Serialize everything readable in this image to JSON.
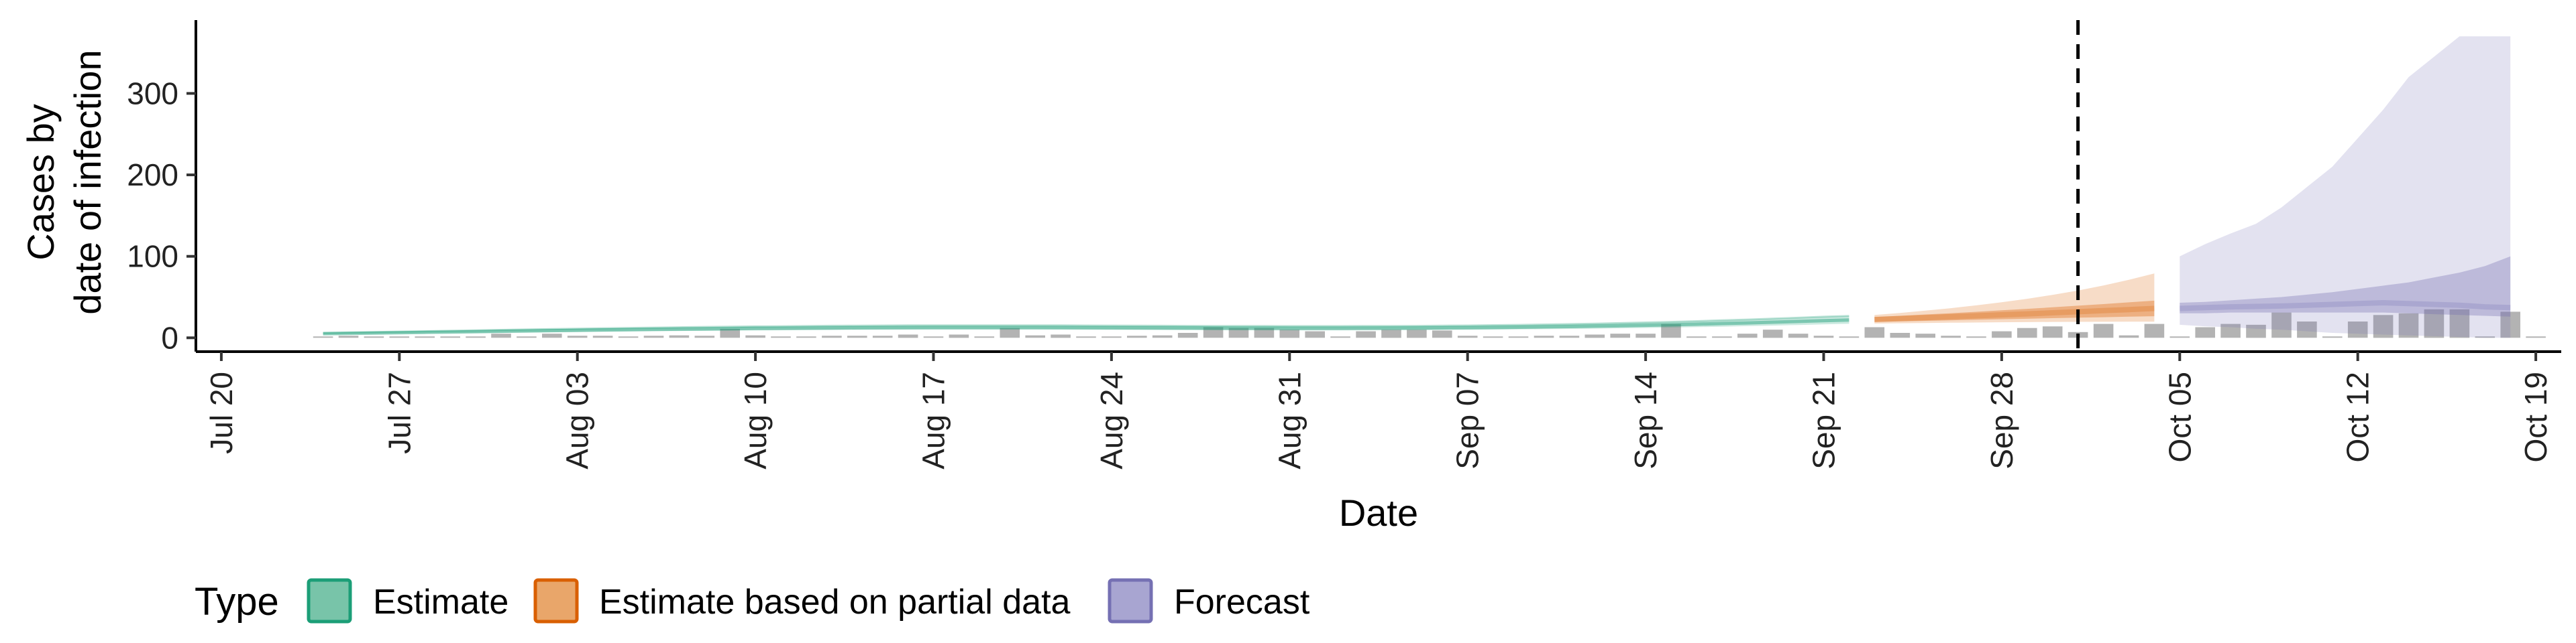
{
  "chart_data": {
    "type": "area",
    "xlabel": "Date",
    "ylabel_lines": [
      "Cases by",
      "date of infection"
    ],
    "ylim": [
      -17,
      390
    ],
    "yticks": [
      0,
      100,
      200,
      300
    ],
    "xlim_days": [
      -1,
      92
    ],
    "date_origin": "Jul 20",
    "xtick_days": [
      0,
      7,
      14,
      21,
      28,
      35,
      42,
      49,
      56,
      63,
      70,
      77,
      84,
      91
    ],
    "xtick_labels": [
      "Jul 20",
      "Jul 27",
      "Aug 03",
      "Aug 10",
      "Aug 17",
      "Aug 24",
      "Aug 31",
      "Sep 07",
      "Sep 14",
      "Sep 21",
      "Sep 28",
      "Oct 05",
      "Oct 12",
      "Oct 19"
    ],
    "vline_day": 73,
    "legend": {
      "title": "Type",
      "entries": [
        {
          "label": "Estimate",
          "fill": "#78c4a9",
          "stroke": "#1b9e77"
        },
        {
          "label": "Estimate based on partial data",
          "fill": "#e9a66a",
          "stroke": "#d95f02"
        },
        {
          "label": "Forecast",
          "fill": "#a8a5d1",
          "stroke": "#7570b3"
        }
      ]
    },
    "observed_bars": {
      "start_day": 4,
      "values": [
        0,
        1,
        0,
        0,
        0,
        0,
        0,
        5,
        0,
        5,
        1,
        2,
        0,
        1,
        3,
        1,
        11,
        3,
        0,
        0,
        1,
        1,
        2,
        4,
        0,
        4,
        0,
        12,
        3,
        4,
        0,
        0,
        1,
        3,
        6,
        13,
        12,
        12,
        10,
        8,
        0,
        8,
        10,
        10,
        9,
        1,
        0,
        0,
        1,
        1,
        4,
        5,
        5,
        17,
        0,
        0,
        5,
        10,
        5,
        2,
        0,
        13,
        6,
        5,
        2,
        0,
        8,
        12,
        14,
        7,
        17,
        3,
        17,
        0,
        13,
        17,
        16,
        31,
        20,
        0,
        20,
        28,
        30,
        35,
        35,
        0,
        32,
        0
      ]
    },
    "series": [
      {
        "name": "Estimate",
        "start_day": 4,
        "median": [
          5,
          5.4,
          5.8,
          6.3,
          6.7,
          7.1,
          7.5,
          8,
          8.4,
          8.8,
          9.2,
          9.6,
          9.9,
          10.3,
          10.6,
          10.9,
          11.2,
          11.5,
          11.7,
          11.9,
          12.1,
          12.3,
          12.4,
          12.5,
          12.6,
          12.6,
          12.6,
          12.6,
          12.6,
          12.5,
          12.4,
          12.3,
          12.2,
          12.1,
          12,
          11.9,
          11.8,
          11.8,
          11.7,
          11.7,
          11.7,
          11.8,
          11.9,
          12,
          12.2,
          12.4,
          12.7,
          13,
          13.4,
          13.8,
          14.3,
          14.8,
          15.4,
          16,
          16.7,
          17.5,
          18.3,
          19.2,
          20.1,
          21.1,
          21.9
        ],
        "lower90": [
          4,
          4.3,
          4.6,
          5,
          5.3,
          5.6,
          5.9,
          6.3,
          6.6,
          6.9,
          7.2,
          7.5,
          7.8,
          8.1,
          8.3,
          8.6,
          8.8,
          9,
          9.2,
          9.4,
          9.5,
          9.7,
          9.8,
          9.9,
          9.9,
          10,
          10,
          10,
          10,
          9.9,
          9.8,
          9.7,
          9.6,
          9.5,
          9.4,
          9.3,
          9.2,
          9.2,
          9.1,
          9.1,
          9.1,
          9.2,
          9.3,
          9.4,
          9.6,
          9.8,
          10,
          10.3,
          10.6,
          10.9,
          11.3,
          11.7,
          12.1,
          12.6,
          13.1,
          13.7,
          14.3,
          15,
          15.7,
          16.5,
          17.2
        ],
        "upper90": [
          6,
          6.5,
          7,
          7.6,
          8.1,
          8.6,
          9.1,
          9.7,
          10.2,
          10.7,
          11.2,
          11.7,
          12.1,
          12.5,
          12.9,
          13.3,
          13.6,
          14,
          14.2,
          14.5,
          14.7,
          14.9,
          15.1,
          15.2,
          15.3,
          15.3,
          15.3,
          15.3,
          15.3,
          15.2,
          15.1,
          15,
          14.8,
          14.7,
          14.6,
          14.5,
          14.4,
          14.4,
          14.3,
          14.3,
          14.3,
          14.4,
          14.5,
          14.6,
          14.9,
          15.1,
          15.5,
          15.8,
          16.3,
          16.8,
          17.4,
          18,
          18.8,
          19.5,
          20.4,
          21.4,
          22.4,
          23.5,
          24.6,
          25.8,
          26.8
        ]
      },
      {
        "name": "Estimate based on partial data",
        "start_day": 65,
        "median": [
          22.5,
          23.6,
          24.7,
          25.8,
          27,
          28.2,
          29.4,
          30.7,
          32,
          33.3,
          34.6,
          36
        ],
        "lower50": [
          19.5,
          20.2,
          20.8,
          21.5,
          22.1,
          22.8,
          23.4,
          24.1,
          24.7,
          25.3,
          25.9,
          26.5
        ],
        "upper50": [
          25.5,
          27,
          28.6,
          30.2,
          31.9,
          33.7,
          35.5,
          37.4,
          39.4,
          41.4,
          43.5,
          45.6
        ],
        "lower90": [
          17.5,
          17.9,
          18.2,
          18.5,
          18.8,
          19.1,
          19.3,
          19.5,
          19.6,
          19.7,
          19.8,
          19.8
        ],
        "upper90": [
          28,
          30.5,
          33.3,
          36.4,
          39.8,
          43.6,
          47.9,
          52.7,
          58.1,
          64.2,
          71.2,
          79
        ]
      },
      {
        "name": "Forecast",
        "start_day": 77,
        "median": [
          36,
          37,
          38,
          38.5,
          39,
          40,
          41,
          42,
          43,
          42,
          41,
          40,
          38,
          37
        ],
        "lower50": [
          30,
          30,
          31,
          31,
          31,
          31,
          31,
          31,
          31,
          30,
          29,
          28,
          27,
          26
        ],
        "upper50": [
          43,
          44,
          46,
          48,
          50,
          53,
          56,
          60,
          64,
          68,
          74,
          80,
          88,
          100
        ],
        "lower90": [
          16,
          14,
          13,
          11,
          10,
          8,
          6,
          5,
          4,
          3,
          2,
          1,
          0,
          0
        ],
        "upper90": [
          100,
          115,
          128,
          140,
          160,
          185,
          210,
          245,
          280,
          320,
          345,
          370,
          370,
          370
        ]
      }
    ]
  }
}
